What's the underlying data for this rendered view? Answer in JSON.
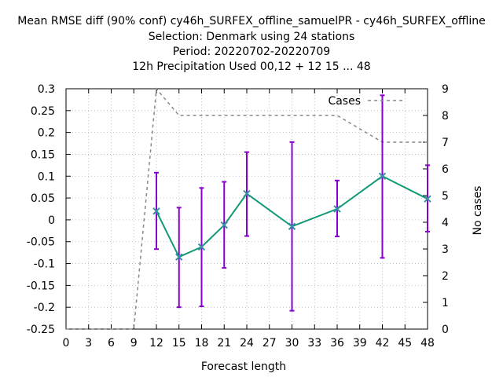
{
  "title_lines": [
    "Mean RMSE diff (90% conf) cy46h_SURFEX_offline_samuelPR - cy46h_SURFEX_offline",
    "Selection: Denmark using    24 stations",
    "Period: 20220702-20220709",
    "12h Precipitation   Used  00,12  + 12 15 ... 48"
  ],
  "chart_data": {
    "type": "line",
    "xlabel": "Forecast length",
    "ylabel": "",
    "y2label": "No cases",
    "xlim": [
      0,
      48
    ],
    "ylim": [
      -0.25,
      0.3
    ],
    "y2lim": [
      0,
      9
    ],
    "x_ticks": [
      0,
      3,
      6,
      9,
      12,
      15,
      18,
      21,
      24,
      27,
      30,
      33,
      36,
      39,
      42,
      45,
      48
    ],
    "y_ticks": [
      -0.25,
      -0.2,
      -0.15,
      -0.1,
      -0.05,
      0,
      0.05,
      0.1,
      0.15,
      0.2,
      0.25,
      0.3
    ],
    "y_tick_labels": [
      "-0.25",
      "-0.2",
      "-0.15",
      "-0.1",
      "-0.05",
      "0",
      "0.05",
      "0.1",
      "0.15",
      "0.2",
      "0.25",
      "0.3"
    ],
    "y2_ticks": [
      0,
      1,
      2,
      3,
      4,
      5,
      6,
      7,
      8,
      9
    ],
    "grid": true,
    "mean_series": {
      "color": "#119977",
      "marker_color": "#3a8fa0",
      "x": [
        12,
        15,
        18,
        21,
        24,
        30,
        36,
        42,
        48
      ],
      "y": [
        0.02,
        -0.085,
        -0.062,
        -0.012,
        0.06,
        -0.015,
        0.025,
        0.1,
        0.048
      ]
    },
    "error_bars": {
      "color": "#8800cc",
      "x": [
        12,
        15,
        18,
        21,
        24,
        30,
        36,
        42,
        48
      ],
      "low": [
        -0.067,
        -0.2,
        -0.198,
        -0.11,
        -0.037,
        -0.208,
        -0.038,
        -0.087,
        -0.027
      ],
      "high": [
        0.108,
        0.028,
        0.073,
        0.087,
        0.155,
        0.178,
        0.09,
        0.285,
        0.125
      ]
    },
    "cases_series": {
      "name": "Cases",
      "color": "#888888",
      "x": [
        0,
        3,
        6,
        9,
        12,
        15,
        18,
        21,
        24,
        27,
        30,
        33,
        36,
        39,
        42,
        45,
        48
      ],
      "y": [
        0,
        0,
        0,
        0,
        9,
        8,
        8,
        8,
        8,
        8,
        8,
        8,
        8,
        7.5,
        7,
        7,
        7
      ]
    }
  }
}
